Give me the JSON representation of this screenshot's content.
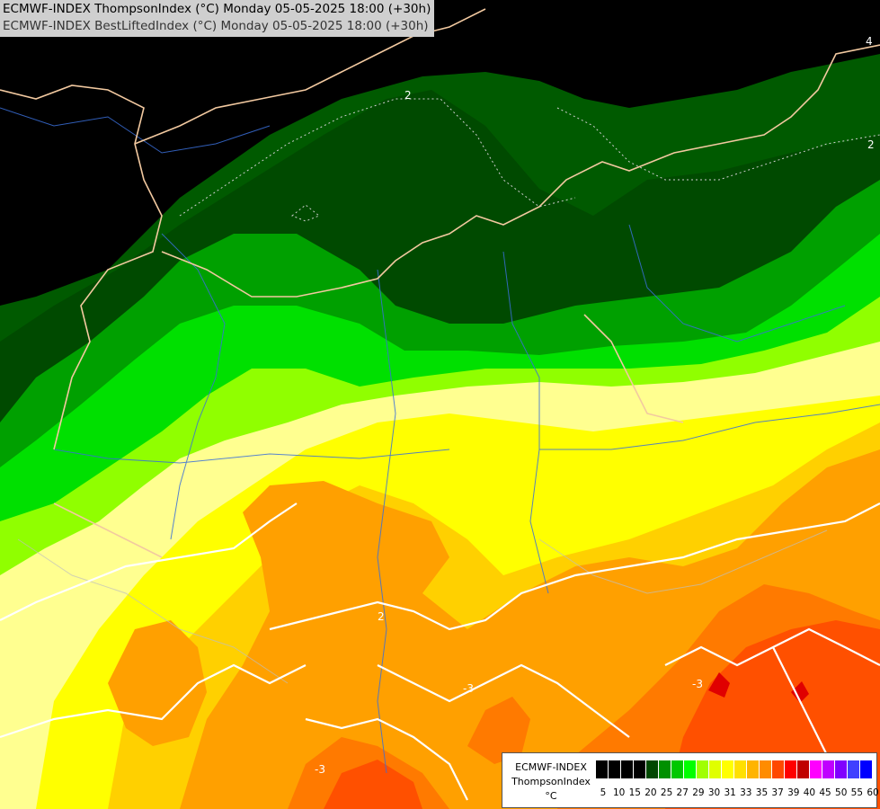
{
  "header": {
    "line1": "ECMWF-INDEX ThompsonIndex (°C) Monday 05-05-2025 18:00 (+30h)",
    "line2": "ECMWF-INDEX BestLiftedIndex (°C) Monday 05-05-2025 18:00 (+30h)"
  },
  "contour_labels": [
    "2",
    "2",
    "4",
    "-3",
    "-3",
    "-3",
    "2"
  ],
  "legend": {
    "title_line1": "ECMWF-INDEX",
    "title_line2": "ThompsonIndex",
    "title_line3": "°C",
    "ticks": [
      "5",
      "10",
      "15",
      "20",
      "25",
      "27",
      "29",
      "30",
      "31",
      "33",
      "35",
      "37",
      "39",
      "40",
      "45",
      "50",
      "55",
      "60"
    ],
    "colors": [
      "#000000",
      "#000000",
      "#000000",
      "#000000",
      "#004800",
      "#009000",
      "#00c800",
      "#00ff00",
      "#a0ff00",
      "#e0ff00",
      "#ffff00",
      "#ffe000",
      "#ffb400",
      "#ff8c00",
      "#ff4800",
      "#ff0000",
      "#c00000",
      "#ff00ff",
      "#c000ff",
      "#8000ff",
      "#4040ff",
      "#0000ff"
    ]
  }
}
